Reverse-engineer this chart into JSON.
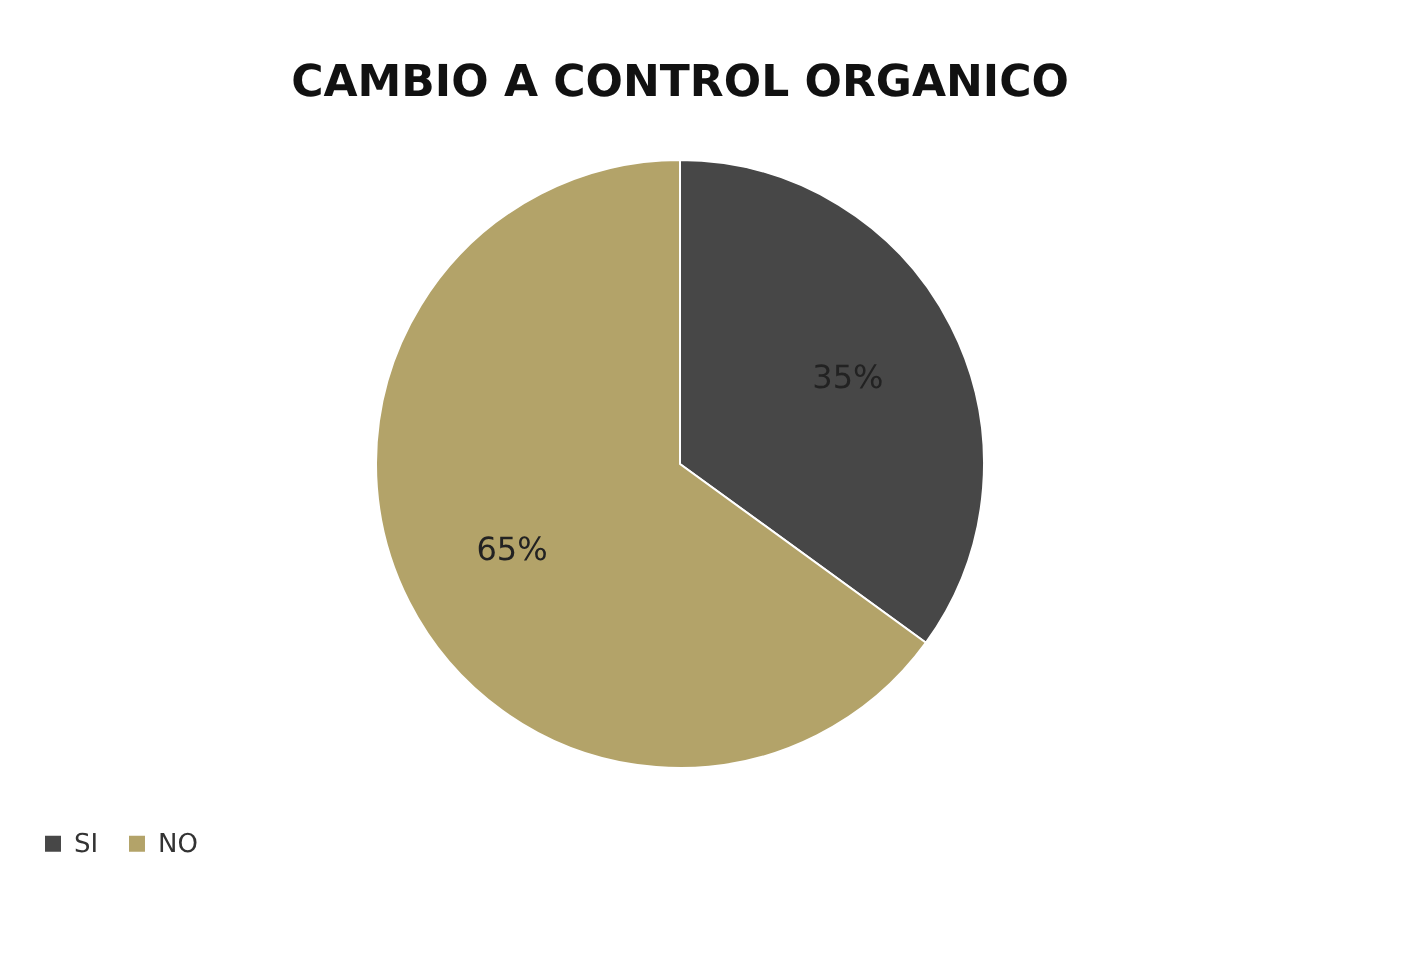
{
  "chart_data": {
    "type": "pie",
    "title": "CAMBIO A CONTROL ORGANICO",
    "categories": [
      "SI",
      "NO"
    ],
    "values": [
      35,
      65
    ],
    "colors": [
      "#474747",
      "#b3a369"
    ],
    "value_labels": [
      "35%",
      "65%"
    ],
    "legend": "bottom"
  }
}
